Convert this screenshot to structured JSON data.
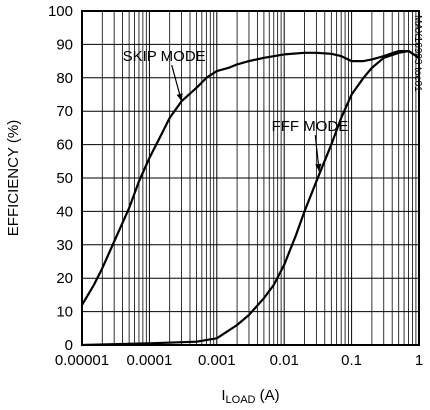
{
  "chart_data": {
    "type": "line",
    "x_scale": "log",
    "xlim": [
      1e-05,
      1
    ],
    "ylim": [
      0,
      100
    ],
    "grid": true,
    "xlabel_prefix": "I",
    "xlabel_sub": "LOAD",
    "xlabel_suffix": " (A)",
    "ylabel": "EFFICIENCY (%)",
    "chart_code": "MAX16903 toc01",
    "x_ticks": [
      "0.00001",
      "0.0001",
      "0.001",
      "0.01",
      "0.1",
      "1"
    ],
    "y_ticks": [
      "0",
      "10",
      "20",
      "30",
      "40",
      "50",
      "60",
      "70",
      "80",
      "90",
      "100"
    ],
    "series": [
      {
        "name": "SKIP MODE",
        "points": [
          [
            1e-05,
            12
          ],
          [
            1.5e-05,
            18
          ],
          [
            2e-05,
            23
          ],
          [
            3e-05,
            31
          ],
          [
            5e-05,
            41
          ],
          [
            7e-05,
            49
          ],
          [
            0.0001,
            56
          ],
          [
            0.00015,
            63
          ],
          [
            0.0002,
            68
          ],
          [
            0.0003,
            73
          ],
          [
            0.0005,
            77
          ],
          [
            0.0007,
            80
          ],
          [
            0.001,
            82
          ],
          [
            0.0015,
            83
          ],
          [
            0.002,
            84
          ],
          [
            0.003,
            85
          ],
          [
            0.005,
            86
          ],
          [
            0.01,
            87
          ],
          [
            0.02,
            87.5
          ],
          [
            0.03,
            87.5
          ],
          [
            0.05,
            87.2
          ],
          [
            0.07,
            86.5
          ],
          [
            0.1,
            85
          ],
          [
            0.15,
            85
          ],
          [
            0.2,
            85.5
          ],
          [
            0.3,
            86.5
          ],
          [
            0.5,
            88
          ],
          [
            0.7,
            88
          ],
          [
            1,
            86
          ]
        ]
      },
      {
        "name": "FFF MODE",
        "points": [
          [
            1e-05,
            0
          ],
          [
            0.0001,
            0.5
          ],
          [
            0.0005,
            1
          ],
          [
            0.001,
            2
          ],
          [
            0.002,
            6
          ],
          [
            0.003,
            9
          ],
          [
            0.005,
            14
          ],
          [
            0.007,
            18
          ],
          [
            0.01,
            24
          ],
          [
            0.015,
            33
          ],
          [
            0.02,
            40
          ],
          [
            0.03,
            49
          ],
          [
            0.05,
            60
          ],
          [
            0.07,
            68
          ],
          [
            0.1,
            75
          ],
          [
            0.15,
            80
          ],
          [
            0.2,
            83
          ],
          [
            0.3,
            86
          ],
          [
            0.5,
            87.5
          ],
          [
            0.7,
            88
          ],
          [
            1,
            86
          ]
        ]
      }
    ],
    "annotations": [
      {
        "text": "SKIP MODE",
        "x": 4e-05,
        "y": 85,
        "target_x": 0.0003,
        "target_y": 73
      },
      {
        "text": "FFF MODE",
        "x": 0.0065,
        "y": 64,
        "target_x": 0.033,
        "target_y": 52
      }
    ]
  }
}
